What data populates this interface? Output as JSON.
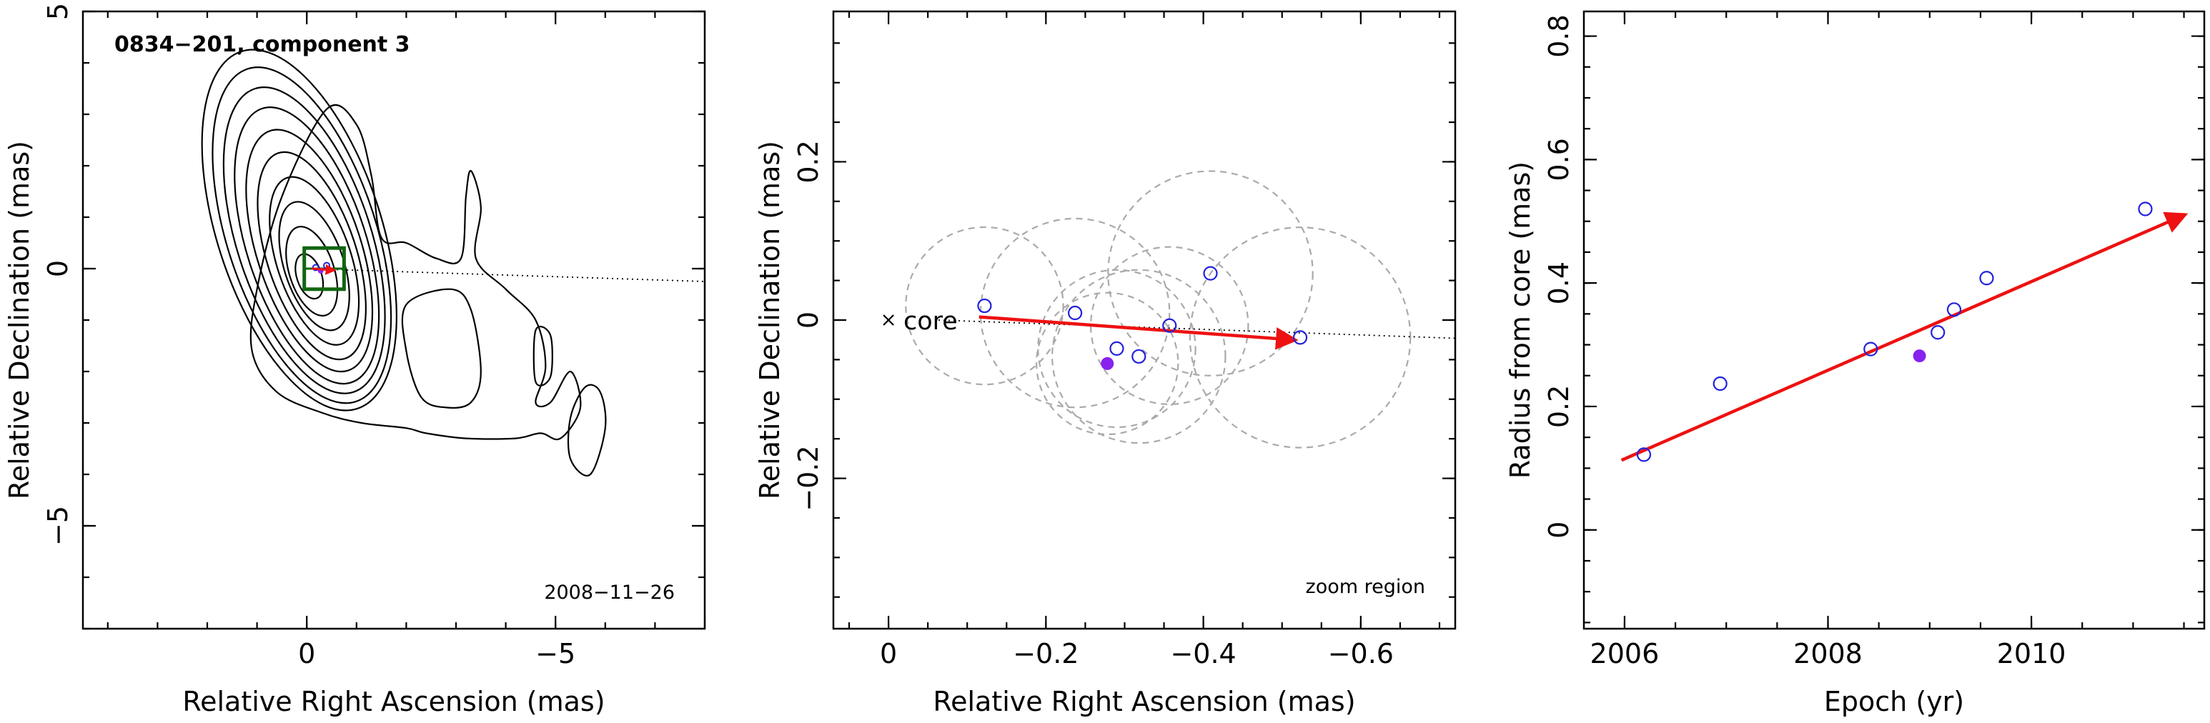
{
  "colors": {
    "arrow": "#ee1111",
    "open_marker": "#2222dd",
    "filled_marker": "#8822ee",
    "zoom_box": "#116611",
    "beam_circle": "#aaaaaa"
  },
  "chart_data": [
    {
      "type": "contour",
      "title": "0834−201, component 3",
      "epoch_label": "2008−11−26",
      "xlabel": "Relative Right Ascension (mas)",
      "ylabel": "Relative Declination (mas)",
      "xlim": [
        4.5,
        -8
      ],
      "ylim": [
        -7,
        5
      ],
      "x_ticks": [
        {
          "v": 0,
          "label": "0"
        },
        {
          "v": -5,
          "label": "−5"
        }
      ],
      "y_ticks": [
        {
          "v": 5,
          "label": "5"
        },
        {
          "v": 0,
          "label": "0"
        },
        {
          "v": -5,
          "label": "−5"
        }
      ],
      "core_contours": [
        {
          "cx": -0.05,
          "cy": -0.15,
          "a": 0.25,
          "b": 0.45
        },
        {
          "cx": -0.1,
          "cy": -0.05,
          "a": 0.45,
          "b": 0.9
        },
        {
          "cx": -0.15,
          "cy": 0.05,
          "a": 0.6,
          "b": 1.3
        },
        {
          "cx": -0.15,
          "cy": 0.15,
          "a": 0.75,
          "b": 1.7
        },
        {
          "cx": -0.1,
          "cy": 0.25,
          "a": 0.9,
          "b": 2.1
        },
        {
          "cx": -0.05,
          "cy": 0.35,
          "a": 1.05,
          "b": 2.45
        },
        {
          "cx": 0.0,
          "cy": 0.45,
          "a": 1.2,
          "b": 2.8
        },
        {
          "cx": 0.05,
          "cy": 0.55,
          "a": 1.35,
          "b": 3.1
        },
        {
          "cx": 0.1,
          "cy": 0.65,
          "a": 1.5,
          "b": 3.4
        },
        {
          "cx": 0.15,
          "cy": 0.75,
          "a": 1.65,
          "b": 3.65
        }
      ],
      "core_contour_tilt_deg": -18,
      "outer_contour": [
        [
          -0.4,
          3.1
        ],
        [
          -1.0,
          2.8
        ],
        [
          -1.3,
          1.8
        ],
        [
          -1.5,
          0.6
        ],
        [
          -2.0,
          0.5
        ],
        [
          -2.6,
          0.2
        ],
        [
          -3.1,
          0.2
        ],
        [
          -3.2,
          1.4
        ],
        [
          -3.3,
          1.9
        ],
        [
          -3.5,
          1.2
        ],
        [
          -3.4,
          0.2
        ],
        [
          -4.0,
          -0.4
        ],
        [
          -4.6,
          -1.0
        ],
        [
          -4.8,
          -1.9
        ],
        [
          -4.6,
          -2.6
        ],
        [
          -4.9,
          -2.6
        ],
        [
          -5.3,
          -2.0
        ],
        [
          -5.5,
          -2.7
        ],
        [
          -5.1,
          -3.3
        ],
        [
          -4.7,
          -3.2
        ],
        [
          -4.2,
          -3.3
        ],
        [
          -3.2,
          -3.3
        ],
        [
          -2.4,
          -3.2
        ],
        [
          -2.0,
          -3.1
        ],
        [
          -1.1,
          -3.0
        ],
        [
          -0.3,
          -2.8
        ],
        [
          0.6,
          -2.4
        ],
        [
          1.1,
          -1.6
        ],
        [
          1.0,
          -0.4
        ],
        [
          0.5,
          1.4
        ]
      ],
      "inner_contours": [
        [
          [
            -2.0,
            -0.7
          ],
          [
            -2.9,
            -0.4
          ],
          [
            -3.3,
            -0.8
          ],
          [
            -3.5,
            -2.0
          ],
          [
            -3.3,
            -2.6
          ],
          [
            -2.8,
            -2.7
          ],
          [
            -2.3,
            -2.5
          ],
          [
            -2.0,
            -1.6
          ]
        ],
        [
          [
            -4.6,
            -1.2
          ],
          [
            -4.9,
            -1.3
          ],
          [
            -4.9,
            -2.1
          ],
          [
            -4.6,
            -2.2
          ]
        ],
        [
          [
            -5.6,
            -2.3
          ],
          [
            -5.9,
            -2.4
          ],
          [
            -6.0,
            -3.1
          ],
          [
            -5.7,
            -4.0
          ],
          [
            -5.3,
            -3.7
          ],
          [
            -5.3,
            -2.9
          ]
        ]
      ],
      "ridge_line": [
        [
          0,
          0
        ],
        [
          -8,
          -0.25
        ]
      ],
      "zoom_box": {
        "x0": 0.05,
        "x1": -0.75,
        "y0": -0.4,
        "y1": 0.4
      }
    },
    {
      "type": "scatter",
      "note_label": "zoom region",
      "core_label": "core",
      "xlabel": "Relative Right Ascension (mas)",
      "ylabel": "Relative Declination (mas)",
      "xlim": [
        0.07,
        -0.72
      ],
      "ylim": [
        -0.39,
        0.39
      ],
      "x_ticks": [
        {
          "v": 0,
          "label": "0"
        },
        {
          "v": -0.2,
          "label": "−0.2"
        },
        {
          "v": -0.4,
          "label": "−0.4"
        },
        {
          "v": -0.6,
          "label": "−0.6"
        }
      ],
      "y_ticks": [
        {
          "v": 0.2,
          "label": "0.2"
        },
        {
          "v": 0,
          "label": "0"
        },
        {
          "v": -0.2,
          "label": "−0.2"
        }
      ],
      "points": [
        {
          "x": -0.122,
          "y": 0.018,
          "filled": false
        },
        {
          "x": -0.237,
          "y": 0.009,
          "filled": false
        },
        {
          "x": -0.29,
          "y": -0.036,
          "filled": false
        },
        {
          "x": -0.318,
          "y": -0.046,
          "filled": false
        },
        {
          "x": -0.357,
          "y": -0.007,
          "filled": false
        },
        {
          "x": -0.409,
          "y": 0.059,
          "filled": false
        },
        {
          "x": -0.523,
          "y": -0.022,
          "filled": false
        },
        {
          "x": -0.278,
          "y": -0.055,
          "filled": true
        }
      ],
      "beam_circles": [
        {
          "x": -0.122,
          "y": 0.018,
          "r": 0.1
        },
        {
          "x": -0.237,
          "y": 0.009,
          "r": 0.12
        },
        {
          "x": -0.29,
          "y": -0.036,
          "r": 0.1
        },
        {
          "x": -0.318,
          "y": -0.046,
          "r": 0.11
        },
        {
          "x": -0.357,
          "y": -0.007,
          "r": 0.1
        },
        {
          "x": -0.409,
          "y": 0.059,
          "r": 0.13
        },
        {
          "x": -0.523,
          "y": -0.022,
          "r": 0.14
        },
        {
          "x": -0.278,
          "y": -0.055,
          "r": 0.09
        }
      ],
      "arrow": {
        "x0": -0.115,
        "y0": 0.004,
        "x1": -0.515,
        "y1": -0.025
      },
      "ridge_line": [
        [
          0,
          0
        ],
        [
          -0.72,
          -0.023
        ]
      ]
    },
    {
      "type": "scatter",
      "xlabel": "Epoch (yr)",
      "ylabel": "Radius from core (mas)",
      "xlim": [
        2005.6,
        2011.7
      ],
      "ylim": [
        -0.16,
        0.84
      ],
      "x_ticks": [
        {
          "v": 2006,
          "label": "2006"
        },
        {
          "v": 2008,
          "label": "2008"
        },
        {
          "v": 2010,
          "label": "2010"
        }
      ],
      "y_ticks": [
        {
          "v": 0,
          "label": "0"
        },
        {
          "v": 0.2,
          "label": "0.2"
        },
        {
          "v": 0.4,
          "label": "0.4"
        },
        {
          "v": 0.6,
          "label": "0.6"
        },
        {
          "v": 0.8,
          "label": "0.8"
        }
      ],
      "points": [
        {
          "x": 2006.19,
          "y": 0.122,
          "filled": false
        },
        {
          "x": 2006.94,
          "y": 0.237,
          "filled": false
        },
        {
          "x": 2008.42,
          "y": 0.293,
          "filled": false
        },
        {
          "x": 2009.08,
          "y": 0.32,
          "filled": false
        },
        {
          "x": 2009.24,
          "y": 0.357,
          "filled": false
        },
        {
          "x": 2009.56,
          "y": 0.408,
          "filled": false
        },
        {
          "x": 2011.12,
          "y": 0.52,
          "filled": false
        },
        {
          "x": 2008.9,
          "y": 0.282,
          "filled": true
        }
      ],
      "fit_arrow": {
        "x0": 2005.97,
        "y0": 0.113,
        "x1": 2011.5,
        "y1": 0.51
      }
    }
  ]
}
